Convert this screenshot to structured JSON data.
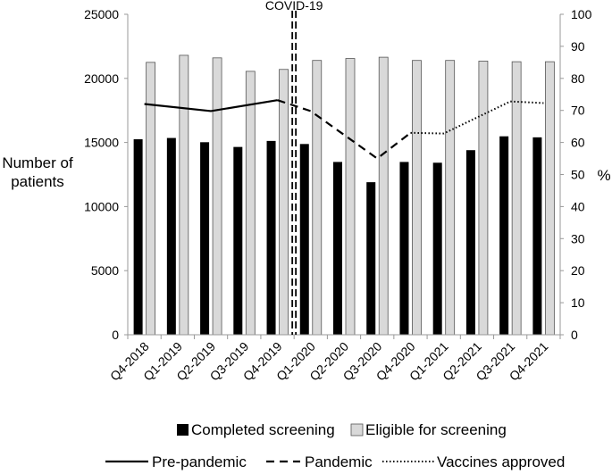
{
  "chart_data": {
    "type": "bar",
    "categories": [
      "Q4-2018",
      "Q1-2019",
      "Q2-2019",
      "Q3-2019",
      "Q4-2019",
      "Q1-2020",
      "Q2-2020",
      "Q3-2020",
      "Q4-2020",
      "Q1-2021",
      "Q2-2021",
      "Q3-2021",
      "Q4-2021"
    ],
    "ylabel_left": [
      "Number of",
      "patients"
    ],
    "ylabel_right": "%",
    "ylim_left": [
      0,
      25000
    ],
    "yticks_left": [
      0,
      5000,
      10000,
      15000,
      20000,
      25000
    ],
    "ylim_right": [
      0,
      100
    ],
    "yticks_right": [
      0,
      10,
      20,
      30,
      40,
      50,
      60,
      70,
      80,
      90,
      100
    ],
    "grid": false,
    "annotation": {
      "text": "COVID-19",
      "between": [
        "Q4-2019",
        "Q1-2020"
      ]
    },
    "series": [
      {
        "name": "Completed screening",
        "kind": "bar",
        "color": "#000000",
        "values": [
          15250,
          15350,
          15020,
          14650,
          15120,
          14880,
          13480,
          11900,
          13480,
          13420,
          14400,
          15480,
          15400
        ]
      },
      {
        "name": "Eligible for screening",
        "kind": "bar",
        "color": "#d9d9d9",
        "values": [
          21250,
          21800,
          21600,
          20550,
          20700,
          21400,
          21550,
          21650,
          21400,
          21400,
          21350,
          21300,
          21300
        ]
      }
    ],
    "lines": [
      {
        "name": "Pre-pandemic",
        "style": "solid",
        "axis": "right",
        "points": [
          [
            "Q4-2018",
            72
          ],
          [
            "Q2-2019",
            69.8
          ],
          [
            "Q4-2019",
            73.2
          ]
        ]
      },
      {
        "name": "Pandemic",
        "style": "dashed",
        "axis": "right",
        "points": [
          [
            "Q4-2019",
            73.2
          ],
          [
            "Q1-2020",
            69.8
          ],
          [
            "Q3-2020",
            55
          ],
          [
            "Q4-2020",
            63
          ]
        ]
      },
      {
        "name": "Vaccines approved",
        "style": "dotted",
        "axis": "right",
        "points": [
          [
            "Q4-2020",
            63
          ],
          [
            "Q1-2021",
            62.8
          ],
          [
            "Q3-2021",
            72.8
          ],
          [
            "Q4-2021",
            72.3
          ]
        ]
      }
    ],
    "legend": {
      "placement": "bottom"
    }
  }
}
